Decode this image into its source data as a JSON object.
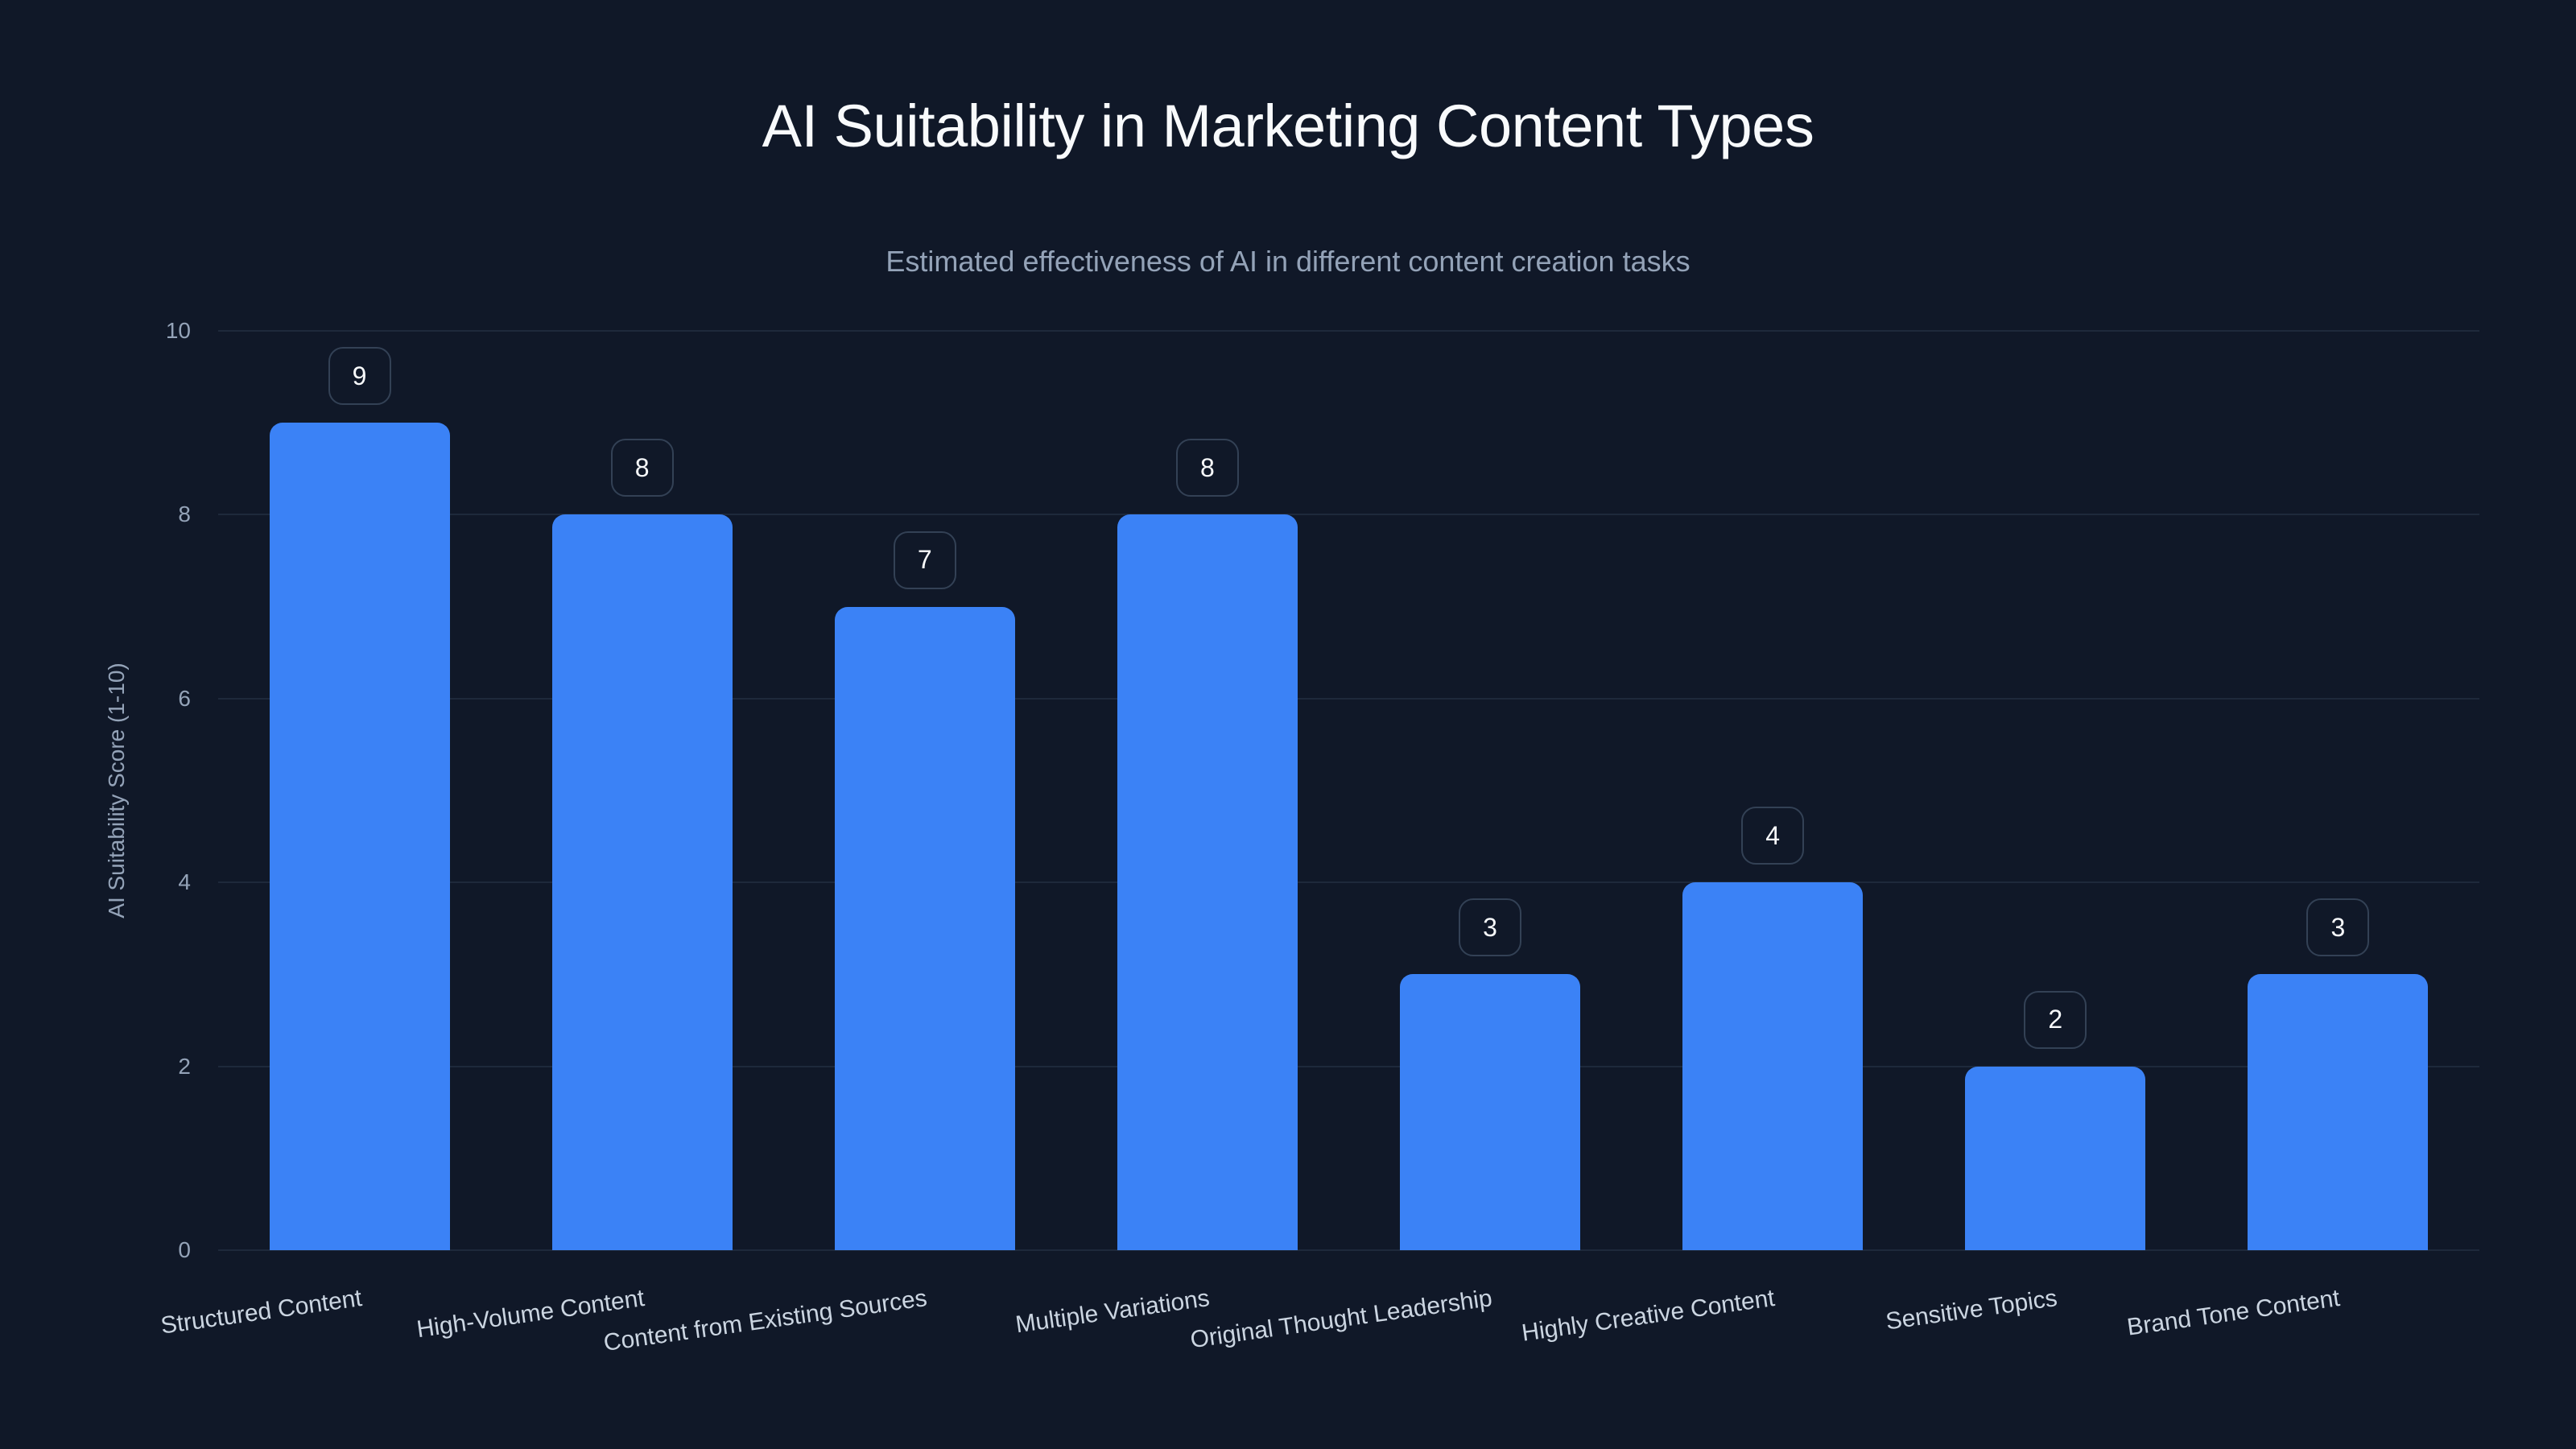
{
  "title": "AI Suitability in Marketing Content Types",
  "subtitle": "Estimated effectiveness of AI in different content creation tasks",
  "colors": {
    "background": "#101828",
    "bar": "#3b82f6",
    "gridline": "#1e293b",
    "label_box_border": "#334155",
    "title": "#f8fafc",
    "muted_text": "#94a3b8"
  },
  "chart_data": {
    "type": "bar",
    "title": "AI Suitability in Marketing Content Types",
    "subtitle": "Estimated effectiveness of AI in different content creation tasks",
    "xlabel": "",
    "ylabel": "AI Suitability Score (1-10)",
    "ylim": [
      0,
      10
    ],
    "yticks": [
      0,
      2,
      4,
      6,
      8,
      10
    ],
    "grid": true,
    "legend": null,
    "categories": [
      "Structured Content",
      "High-Volume Content",
      "Content from Existing Sources",
      "Multiple Variations",
      "Original Thought Leadership",
      "Highly Creative Content",
      "Sensitive Topics",
      "Brand Tone Content"
    ],
    "values": [
      9,
      8,
      7,
      8,
      3,
      4,
      2,
      3
    ],
    "data_labels": [
      "9",
      "8",
      "7",
      "8",
      "3",
      "4",
      "2",
      "3"
    ]
  }
}
